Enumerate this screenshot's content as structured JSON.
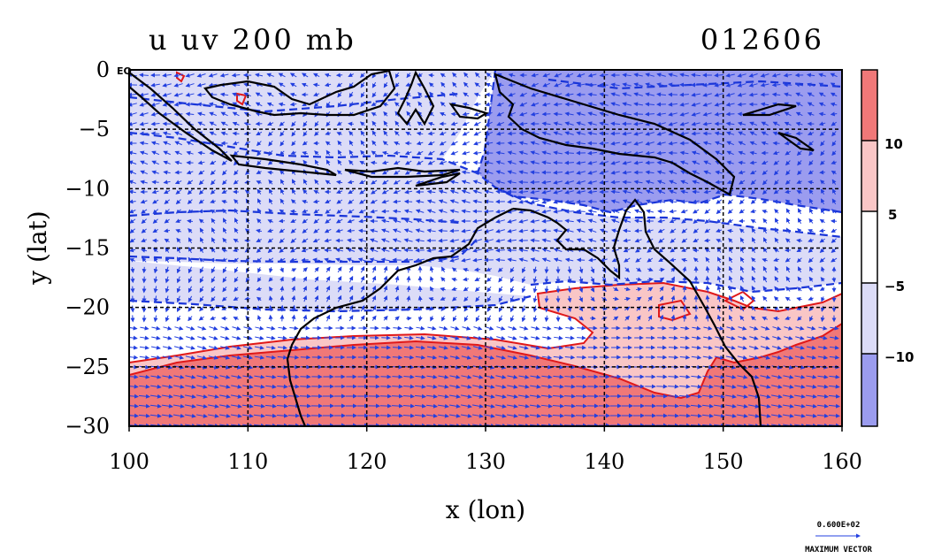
{
  "chart_data": {
    "type": "heatmap",
    "title_left": "u uv 200 mb",
    "title_right": "012606",
    "xlabel": "x (lon)",
    "ylabel": "y (lat)",
    "xlim": [
      100,
      160
    ],
    "ylim": [
      -30,
      0
    ],
    "x_ticks": [
      "100",
      "110",
      "120",
      "130",
      "140",
      "150",
      "160"
    ],
    "y_ticks": [
      "0",
      "−5",
      "−10",
      "−15",
      "−20",
      "−25",
      "−30"
    ],
    "y_tick_values": [
      0,
      -5,
      -10,
      -15,
      -20,
      -25,
      -30
    ],
    "x_tick_values": [
      100,
      110,
      120,
      130,
      140,
      150,
      160
    ],
    "equator_label": "EQ",
    "grid": true,
    "colorbar": {
      "ticks": [
        "10",
        "5",
        "−5",
        "−10"
      ],
      "levels": [
        10,
        5,
        -5,
        -10
      ],
      "colors": [
        "#f07878",
        "#f9c6c6",
        "#ffffff",
        "#dcdcf7",
        "#9b9cef"
      ]
    },
    "contour_colors": {
      "negative": "#1a35d8",
      "positive": "#e01919",
      "coast": "#000000",
      "fill_strong_pos": "#f07878",
      "fill_weak_pos": "#f9c6c6",
      "fill_weak_neg": "#dcdcf7",
      "fill_strong_neg": "#9b9cef"
    },
    "vector_color": "#2340e0",
    "reference_vector": {
      "value": "0.600E+02",
      "label": "MAXIMUM VECTOR"
    }
  }
}
